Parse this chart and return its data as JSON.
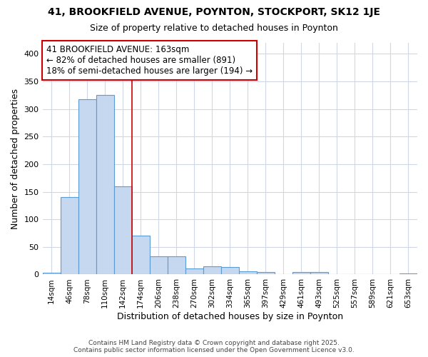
{
  "title": "41, BROOKFIELD AVENUE, POYNTON, STOCKPORT, SK12 1JE",
  "subtitle": "Size of property relative to detached houses in Poynton",
  "xlabel": "Distribution of detached houses by size in Poynton",
  "ylabel": "Number of detached properties",
  "bin_labels": [
    "14sqm",
    "46sqm",
    "78sqm",
    "110sqm",
    "142sqm",
    "174sqm",
    "206sqm",
    "238sqm",
    "270sqm",
    "302sqm",
    "334sqm",
    "365sqm",
    "397sqm",
    "429sqm",
    "461sqm",
    "493sqm",
    "525sqm",
    "557sqm",
    "589sqm",
    "621sqm",
    "653sqm"
  ],
  "bar_heights": [
    3,
    140,
    318,
    325,
    160,
    70,
    33,
    33,
    11,
    15,
    14,
    6,
    4,
    0,
    4,
    4,
    1,
    1,
    1,
    0,
    2
  ],
  "bar_color": "#c5d8f0",
  "bar_edgecolor": "#5b9bd5",
  "background_color": "#ffffff",
  "plot_bg_color": "#ffffff",
  "grid_color": "#d0d8e8",
  "vline_x": 4.5,
  "vline_color": "#cc0000",
  "annotation_text": "41 BROOKFIELD AVENUE: 163sqm\n← 82% of detached houses are smaller (891)\n18% of semi-detached houses are larger (194) →",
  "annotation_box_color": "#ffffff",
  "annotation_box_edgecolor": "#cc0000",
  "footer_text": "Contains HM Land Registry data © Crown copyright and database right 2025.\nContains public sector information licensed under the Open Government Licence v3.0.",
  "ylim": [
    0,
    420
  ],
  "yticks": [
    0,
    50,
    100,
    150,
    200,
    250,
    300,
    350,
    400
  ]
}
